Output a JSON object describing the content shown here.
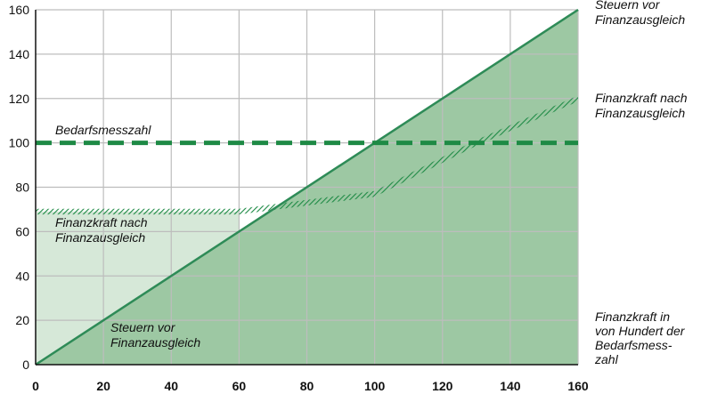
{
  "chart_data": {
    "type": "area",
    "x_ticks": [
      0,
      20,
      40,
      60,
      80,
      100,
      120,
      140,
      160
    ],
    "y_ticks": [
      0,
      20,
      40,
      60,
      80,
      100,
      120,
      140,
      160
    ],
    "xlim": [
      0,
      160
    ],
    "ylim": [
      0,
      160
    ],
    "grid": true,
    "series": [
      {
        "name": "Steuern vor Finanzausgleich",
        "x": [
          0,
          160
        ],
        "y": [
          0,
          160
        ],
        "color": "#2e8b57"
      },
      {
        "name": "Finanzkraft nach Finanzausgleich",
        "x": [
          0,
          60,
          70,
          100,
          130,
          160
        ],
        "y": [
          69,
          69,
          71,
          77,
          100,
          120
        ],
        "color": "#2e8b57"
      },
      {
        "name": "Bedarfsmesszahl",
        "x": [
          0,
          160
        ],
        "y": [
          100,
          100
        ],
        "color": "#1e8a45"
      }
    ],
    "annotations": {
      "bedarfsmesszahl": "Bedarfsmesszahl",
      "fk_left_1": "Finanzkraft nach",
      "fk_left_2": "Finanzausgleich",
      "st_left_1": "Steuern vor",
      "st_left_2": "Finanzausgleich",
      "st_right_1": "Steuern vor",
      "st_right_2": "Finanzausgleich",
      "fk_right_1": "Finanzkraft nach",
      "fk_right_2": "Finanzausgleich",
      "xlabel_1": "Finanzkraft in",
      "xlabel_2": "von Hundert der",
      "xlabel_3": "Bedarfsmess-",
      "xlabel_4": "zahl"
    },
    "colors": {
      "dark_fill": "#9dc8a3",
      "light_fill": "#d6e8d8",
      "line": "#1e8a45",
      "grid": "#bdbdbd"
    }
  }
}
